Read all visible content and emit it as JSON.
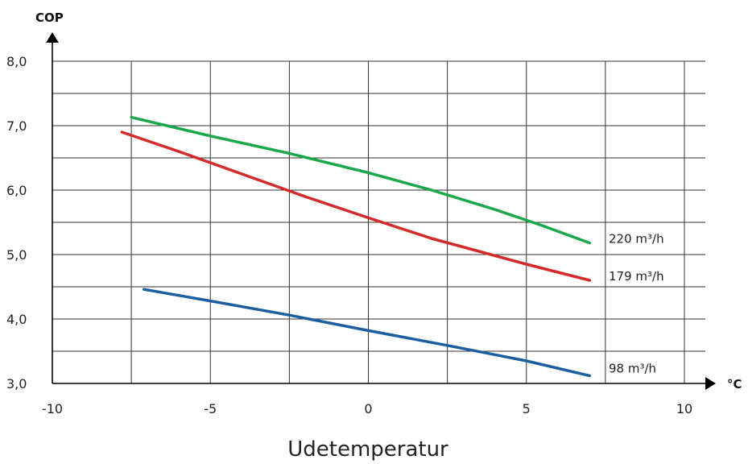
{
  "chart_data": {
    "type": "line",
    "title": "",
    "xlabel": "Udetemperatur",
    "ylabel": "COP",
    "x_unit": "°C",
    "xlim": [
      -10,
      10
    ],
    "ylim": [
      3,
      8
    ],
    "x_ticks": [
      -10,
      -5,
      0,
      5,
      10
    ],
    "x_tick_labels": [
      "-10",
      "-5",
      "0",
      "5",
      "10"
    ],
    "y_ticks": [
      3,
      4,
      5,
      6,
      7,
      8
    ],
    "y_tick_labels": [
      "3,0",
      "4,0",
      "5,0",
      "6,0",
      "7,0",
      "8,0"
    ],
    "grid": true,
    "series": [
      {
        "name": "220 m³/h",
        "color": "#1aa84b",
        "x": [
          -7.5,
          -5,
          -2.5,
          0,
          2,
          4,
          5.5,
          7
        ],
        "y": [
          7.13,
          6.84,
          6.57,
          6.27,
          6.0,
          5.7,
          5.45,
          5.18
        ]
      },
      {
        "name": "179 m³/h",
        "color": "#d42a2a",
        "x": [
          -7.8,
          -6,
          -4,
          -2,
          0,
          2,
          3.5,
          5,
          7
        ],
        "y": [
          6.9,
          6.6,
          6.25,
          5.9,
          5.57,
          5.25,
          5.05,
          4.85,
          4.6
        ]
      },
      {
        "name": "98 m³/h",
        "color": "#1c5fa0",
        "x": [
          -7.1,
          -5,
          -2.5,
          0,
          2.5,
          5,
          7
        ],
        "y": [
          4.46,
          4.28,
          4.06,
          3.82,
          3.59,
          3.35,
          3.12
        ]
      }
    ]
  }
}
